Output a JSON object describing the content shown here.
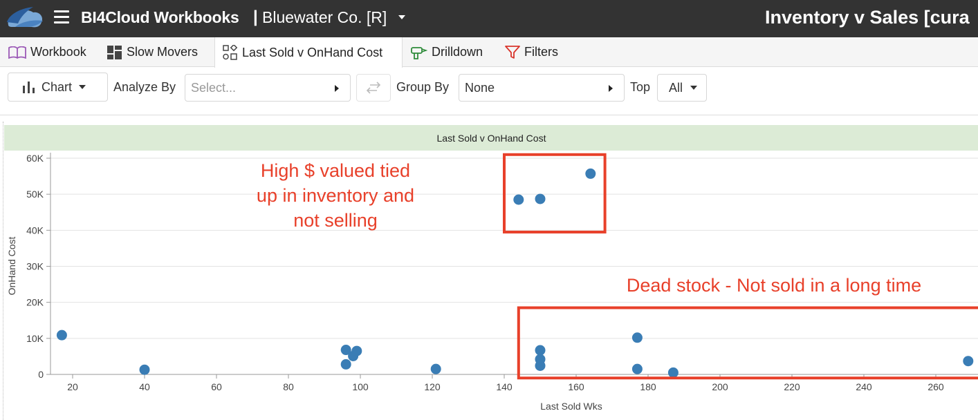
{
  "header": {
    "app_title": "BI4Cloud Workbooks",
    "separator": "|",
    "company": "Bluewater Co. [R]",
    "report_title": "Inventory v Sales [cura"
  },
  "tabs": [
    {
      "label": "Workbook",
      "icon": "book-icon",
      "active": false
    },
    {
      "label": "Slow Movers",
      "icon": "dashboard-icon",
      "active": false
    },
    {
      "label": "Last Sold v OnHand Cost",
      "icon": "shapes-icon",
      "active": true
    },
    {
      "label": "Drilldown",
      "icon": "drill-icon",
      "active": false
    },
    {
      "label": "Filters",
      "icon": "filter-icon",
      "active": false
    }
  ],
  "toolbar": {
    "chart_label": "Chart",
    "analyze_by_label": "Analyze By",
    "analyze_by_placeholder": "Select...",
    "group_by_label": "Group By",
    "group_by_value": "None",
    "top_label": "Top",
    "top_value": "All"
  },
  "chart_data": {
    "type": "scatter",
    "title": "Last Sold v OnHand Cost",
    "xlabel": "Last Sold Wks",
    "ylabel": "OnHand Cost",
    "xlim": [
      15,
      270
    ],
    "ylim": [
      0,
      60000
    ],
    "x_ticks": [
      20,
      40,
      60,
      80,
      100,
      120,
      140,
      160,
      180,
      200,
      220,
      240,
      260
    ],
    "y_ticks": [
      0,
      10000,
      20000,
      30000,
      40000,
      50000,
      60000
    ],
    "y_tick_labels": [
      "0",
      "10K",
      "20K",
      "30K",
      "40K",
      "50K",
      "60K"
    ],
    "grid": "horizontal",
    "color": "#3a7db5",
    "points": [
      {
        "x": 17,
        "y": 10900
      },
      {
        "x": 40,
        "y": 1300
      },
      {
        "x": 96,
        "y": 6800
      },
      {
        "x": 96,
        "y": 2800
      },
      {
        "x": 98,
        "y": 5100
      },
      {
        "x": 99,
        "y": 6500
      },
      {
        "x": 121,
        "y": 1500
      },
      {
        "x": 144,
        "y": 48500
      },
      {
        "x": 150,
        "y": 48700
      },
      {
        "x": 150,
        "y": 6700
      },
      {
        "x": 150,
        "y": 4200
      },
      {
        "x": 150,
        "y": 2400
      },
      {
        "x": 164,
        "y": 55700
      },
      {
        "x": 177,
        "y": 10200
      },
      {
        "x": 177,
        "y": 1500
      },
      {
        "x": 187,
        "y": 500
      },
      {
        "x": 269,
        "y": 3700
      }
    ],
    "annotations": [
      {
        "lines": [
          "High $ valued tied",
          "up in inventory and",
          "not selling"
        ],
        "color": "#e8402a",
        "box_x": [
          140,
          168
        ],
        "box_y": [
          39500,
          61000
        ]
      },
      {
        "lines": [
          "Dead stock - Not sold in a long time"
        ],
        "color": "#e8402a",
        "box_x": [
          144,
          275
        ],
        "box_y": [
          -1000,
          18500
        ]
      }
    ]
  }
}
